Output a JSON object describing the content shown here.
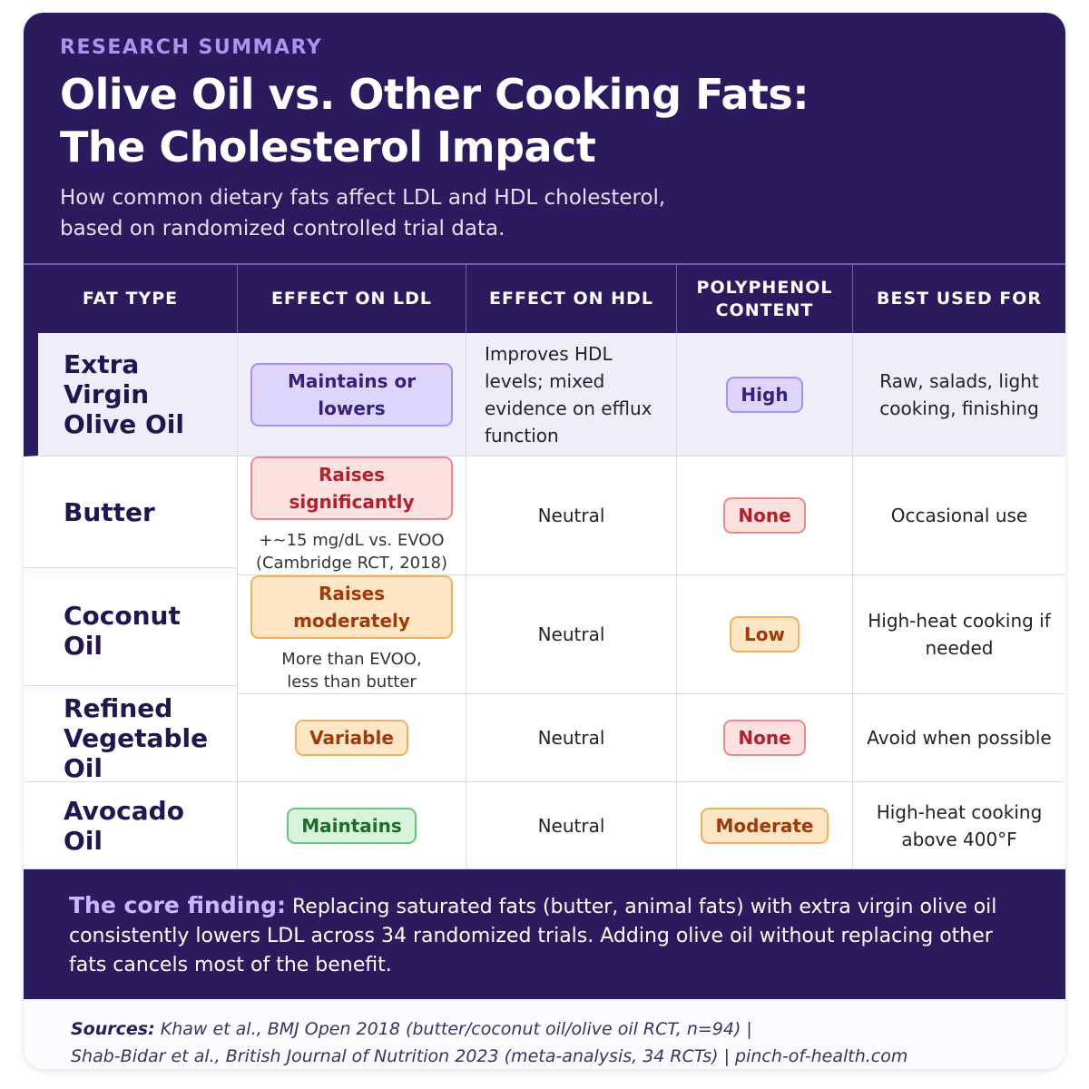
{
  "header": {
    "eyebrow": "RESEARCH SUMMARY",
    "title_lines": [
      "Olive Oil vs. Other Cooking Fats:",
      "The Cholesterol Impact"
    ],
    "subtitle_lines": [
      "How common dietary fats affect LDL and HDL cholesterol,",
      "based on randomized controlled trial data."
    ]
  },
  "table": {
    "columns": [
      "FAT TYPE",
      "EFFECT ON LDL",
      "EFFECT ON HDL",
      "POLYPHENOL CONTENT",
      "BEST USED FOR"
    ],
    "rows": [
      {
        "fat": "Extra Virgin Olive Oil",
        "ldl": "Maintains or lowers",
        "hdl": "Improves HDL levels; mixed evidence on efflux function",
        "polyphenol": "High",
        "best": "Raw, salads, light cooking, finishing"
      },
      {
        "fat": "Butter",
        "ldl": "Raises significantly",
        "ldl_note": [
          "+~15 mg/dL vs. EVOO",
          "(Cambridge RCT, 2018)"
        ],
        "hdl": "Neutral",
        "polyphenol": "None",
        "best": "Occasional use"
      },
      {
        "fat": "Coconut Oil",
        "ldl": "Raises moderately",
        "ldl_note": [
          "More than EVOO,",
          "less than butter"
        ],
        "hdl": "Neutral",
        "polyphenol": "Low",
        "best": "High-heat cooking if needed"
      },
      {
        "fat": "Refined Vegetable Oil",
        "ldl": "Variable",
        "hdl": "Neutral",
        "polyphenol": "None",
        "best": "Avoid when possible"
      },
      {
        "fat": "Avocado Oil",
        "ldl": "Maintains",
        "hdl": "Neutral",
        "polyphenol": "Moderate",
        "best": "High-heat cooking above 400°F"
      }
    ]
  },
  "finding": {
    "label": "The core finding:",
    "text": "Replacing saturated fats (butter, animal fats) with extra virgin olive oil consistently lowers LDL across 34 randomized trials. Adding olive oil without replacing other fats cancels most of the benefit."
  },
  "sources": {
    "label": "Sources:",
    "lines": [
      "Khaw et al., BMJ Open 2018 (butter/coconut oil/olive oil RCT, n=94)  |",
      "Shab-Bidar et al., British Journal of Nutrition 2023 (meta-analysis, 34 RCTs)  |  pinch-of-health.com"
    ]
  }
}
